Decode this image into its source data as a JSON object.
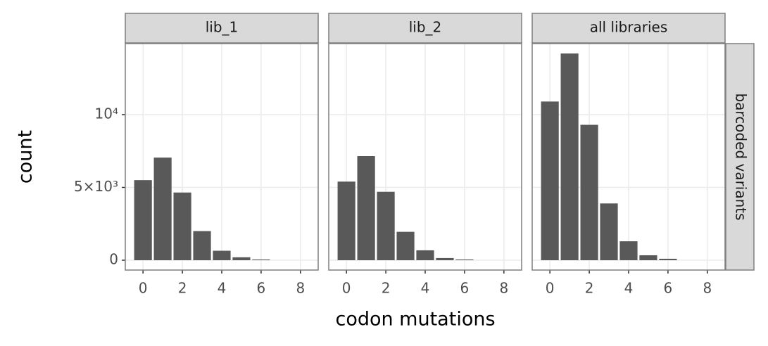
{
  "chart_data": {
    "type": "bar",
    "facet": true,
    "xlabel": "codon mutations",
    "ylabel": "count",
    "row_label": "barcoded variants",
    "x": [
      0,
      1,
      2,
      3,
      4,
      5,
      6,
      7,
      8
    ],
    "series": [
      {
        "name": "lib_1",
        "color": "#595959",
        "values": [
          5500,
          7050,
          4650,
          2000,
          650,
          200,
          50,
          0,
          0
        ]
      },
      {
        "name": "lib_2",
        "color": "#595959",
        "values": [
          5400,
          7150,
          4700,
          1950,
          680,
          150,
          50,
          0,
          0
        ]
      },
      {
        "name": "all libraries",
        "color": "#595959",
        "values": [
          10900,
          14200,
          9300,
          3900,
          1300,
          340,
          100,
          0,
          0
        ]
      }
    ],
    "xlim": [
      -0.9,
      8.9
    ],
    "xticks": [
      0,
      2,
      4,
      6,
      8
    ],
    "ylim": [
      -676,
      14879
    ],
    "yticks": [
      0,
      {
        "value": 5000,
        "label": "5×10³"
      },
      {
        "value": 10000,
        "label": "10⁴"
      }
    ],
    "grid": true
  }
}
